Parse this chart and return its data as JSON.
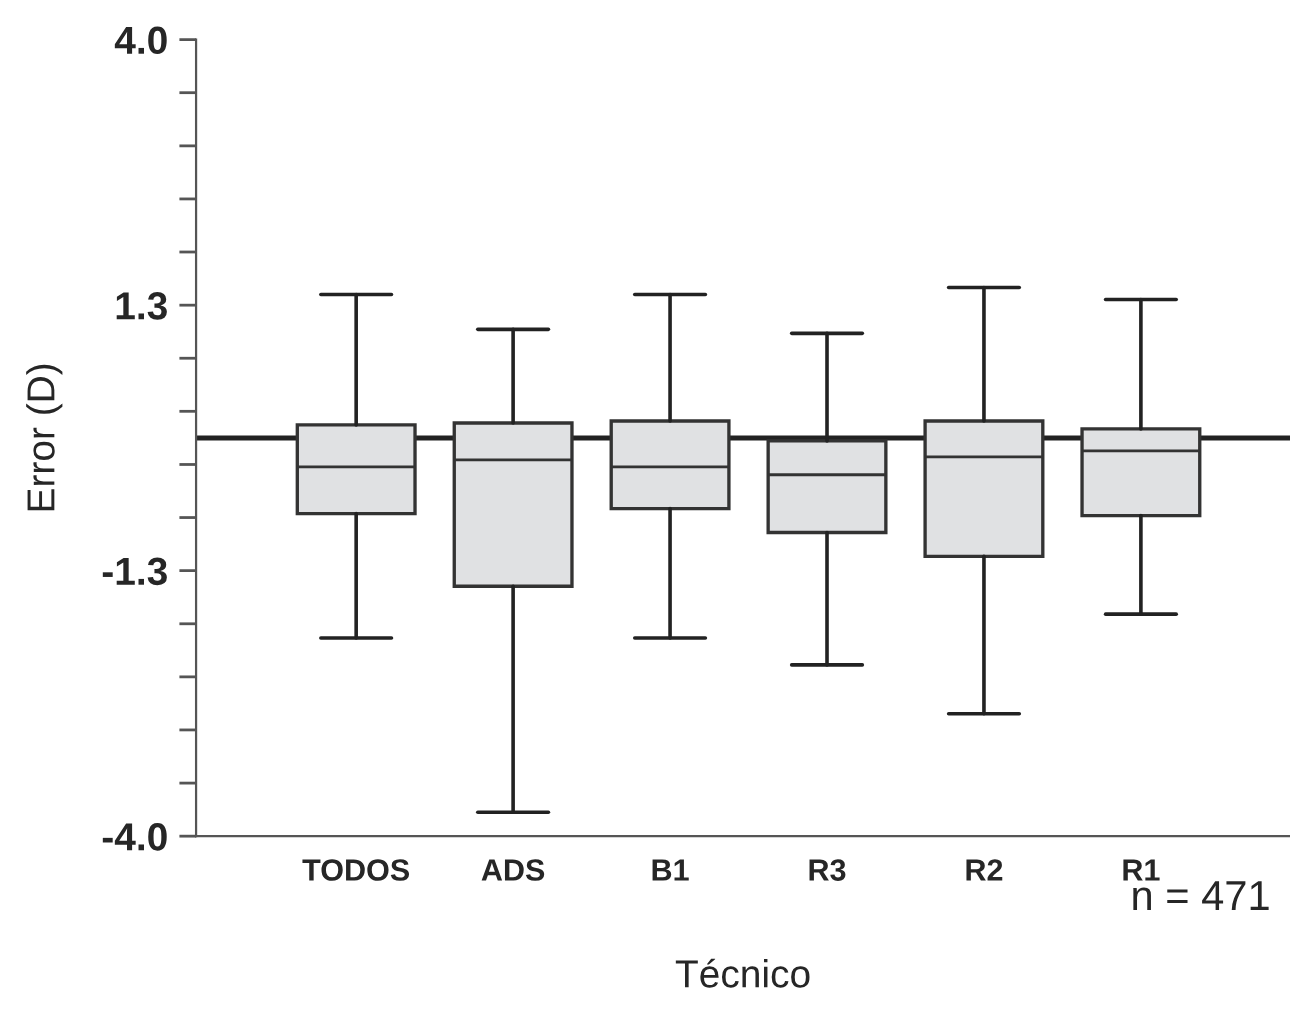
{
  "chart_data": {
    "type": "box",
    "xlabel": "Técnico",
    "ylabel": "Error (D)",
    "categories": [
      "TODOS",
      "ADS",
      "B1",
      "R3",
      "R2",
      "R1"
    ],
    "color": "#e0e1e3",
    "boxes": [
      {
        "low": -2.01,
        "q1": -0.76,
        "median": -0.29,
        "q3": 0.13,
        "high": 1.44
      },
      {
        "low": -3.76,
        "q1": -1.49,
        "median": -0.22,
        "q3": 0.15,
        "high": 1.09
      },
      {
        "low": -2.01,
        "q1": -0.71,
        "median": -0.29,
        "q3": 0.17,
        "high": 1.44
      },
      {
        "low": -2.28,
        "q1": -0.95,
        "median": -0.37,
        "q3": -0.03,
        "high": 1.05
      },
      {
        "low": -2.77,
        "q1": -1.19,
        "median": -0.19,
        "q3": 0.17,
        "high": 1.51
      },
      {
        "low": -1.77,
        "q1": -0.78,
        "median": -0.13,
        "q3": 0.09,
        "high": 1.39
      }
    ],
    "ylim": [
      -4,
      4
    ],
    "yticks": [
      {
        "value": 4,
        "label": "4.0"
      },
      {
        "value": 3.467,
        "label": null
      },
      {
        "value": 2.933,
        "label": null
      },
      {
        "value": 2.4,
        "label": null
      },
      {
        "value": 1.867,
        "label": null
      },
      {
        "value": 1.333,
        "label": "1.3"
      },
      {
        "value": 0.8,
        "label": null
      },
      {
        "value": 0.267,
        "label": null
      },
      {
        "value": -0.267,
        "label": null
      },
      {
        "value": -0.8,
        "label": null
      },
      {
        "value": -1.333,
        "label": "-1.3"
      },
      {
        "value": -1.867,
        "label": null
      },
      {
        "value": -2.4,
        "label": null
      },
      {
        "value": -2.933,
        "label": null
      },
      {
        "value": -3.467,
        "label": null
      },
      {
        "value": -4,
        "label": "-4.0"
      }
    ],
    "ref_lines": [
      {
        "axis": "y",
        "value": 0,
        "color": "#222222"
      }
    ],
    "annotations": [
      "n = 471"
    ],
    "grid": false,
    "legend": false
  }
}
